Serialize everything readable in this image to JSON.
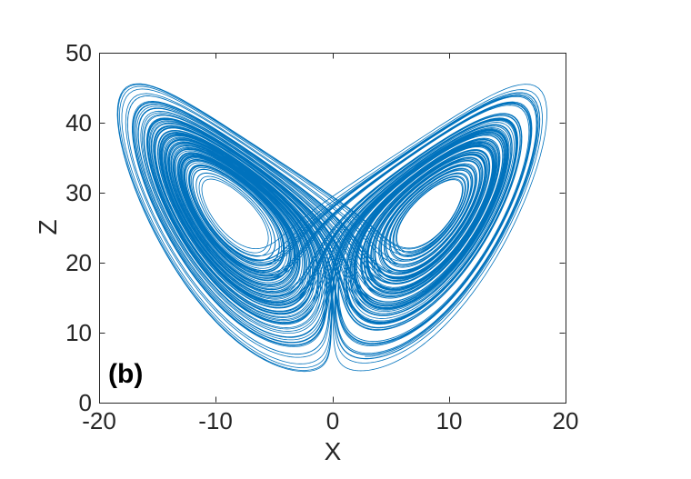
{
  "chart_data": {
    "type": "line",
    "title": "",
    "xlabel": "X",
    "ylabel": "Z",
    "xlim": [
      -20,
      20
    ],
    "ylim": [
      0,
      50
    ],
    "xticks": [
      -20,
      -10,
      0,
      10,
      20
    ],
    "yticks": [
      0,
      10,
      20,
      30,
      40,
      50
    ],
    "xtick_labels": [
      "-20",
      "-10",
      "0",
      "10",
      "20"
    ],
    "ytick_labels": [
      "0",
      "10",
      "20",
      "30",
      "40",
      "50"
    ],
    "grid": false,
    "box": true,
    "tick_direction": "in",
    "legend": null,
    "annotation": "(b)",
    "axes_color": "#262626",
    "background": "#ffffff",
    "series": [
      {
        "name": "Lorenz attractor trajectory (X-Z projection)",
        "color": "#0072BD",
        "line_width": 0.8,
        "generator": {
          "system": "lorenz",
          "sigma": 10,
          "rho": 28,
          "beta": 2.6666667,
          "initial": [
            1,
            1,
            20
          ],
          "dt": 0.005,
          "steps": 35000,
          "skip": 400,
          "plot_axes": [
            "x",
            "z"
          ]
        }
      }
    ]
  }
}
